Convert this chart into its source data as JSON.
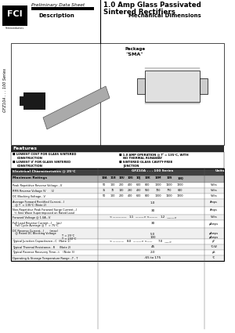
{
  "title_line1": "1.0 Amp Glass Passivated",
  "title_line2": "Sintered Rectifiers",
  "preliminary": "Preliminary Data Sheet",
  "description_label": "Description",
  "mechanical_label": "Mechanical Dimensions",
  "series_label": "FZ10A . . . 100 Series",
  "features_header": "Features",
  "package_label": "Package",
  "package_name": "\"SMA\"",
  "elec_header": "Electrical Characteristics @ 25°C",
  "series_col_header": "GFZ10A . . . 100 Series",
  "units_header": "Units",
  "max_ratings_header": "Maximum Ratings",
  "col_headers": [
    "10A",
    "11B",
    "10U",
    "10G",
    "10J",
    "10K",
    "10M",
    "10S",
    "10Q"
  ],
  "row1_label": "Peak Repetitive Reverse Voltage...V",
  "row1_vals": [
    "50",
    "100",
    "200",
    "400",
    "600",
    "800",
    "1000",
    "1100",
    "1200"
  ],
  "row1_unit": "Volts",
  "row2_label": "RMS Reverse Voltage (V      )2",
  "row2_vals": [
    "35",
    "70",
    "140",
    "280",
    "420",
    "560",
    "700",
    "770",
    "840"
  ],
  "row2_unit": "Volts",
  "row3_label": "DC Blocking Voltage...V",
  "row3_vals": [
    "50",
    "100",
    "200",
    "400",
    "600",
    "800",
    "1000",
    "1100",
    "1200"
  ],
  "row3_unit": "Volts",
  "row4_label1": "Average Forward Rectified Current...I",
  "row4_label2": "   @ T  = 135°C (Note 2)",
  "row4_val": "1.0",
  "row4_unit": "Amps",
  "row5_label1": "Non-Repetitive Peak Forward Surge Current...I",
  "row5_label2": "  ½ Sine Wave Superimposed on Rated Load",
  "row5_val": "30",
  "row5_unit": "Amps",
  "row6_label": "Forward Voltage @ 1.0A...V",
  "row6_val1": "1.1",
  "row6_val2": "1.2",
  "row6_unit": "Volts",
  "row7_label1": "Full Load Reverse Current...I     (av)",
  "row7_label2": "   Full Cycle Average @ T  = 75°C",
  "row7_val": "30",
  "row7_unit": "μAmps",
  "row8_label1": "DC Reverse Current...I       (max)",
  "row8_label2": "   @ Rated DC Blocking Voltage",
  "row8_t1": "T  = 25°C",
  "row8_t2": "T  = 150°C",
  "row8_val1": "5.0",
  "row8_val2": "100",
  "row8_unit1": "μAmps",
  "row8_unit2": "μAmps",
  "row9_label": "Typical Junction Capacitance...C  (Note 1)",
  "row9_val1": "8.0",
  "row9_val2": "7.0",
  "row9_unit": "pF",
  "row10_label": "Typical Thermal Resistance...R     (Note 2)",
  "row10_val": "45",
  "row10_unit": "°C/W",
  "row11_label": "Typical Reverse Recovery Time...t    (Note 3)",
  "row11_val": "2.0",
  "row11_unit": "μS",
  "row12_label": "Operating & Storage Temperature Range...T , T",
  "row12_val": "-65 to 175",
  "row12_unit": "°C",
  "bg_color": "#ffffff"
}
